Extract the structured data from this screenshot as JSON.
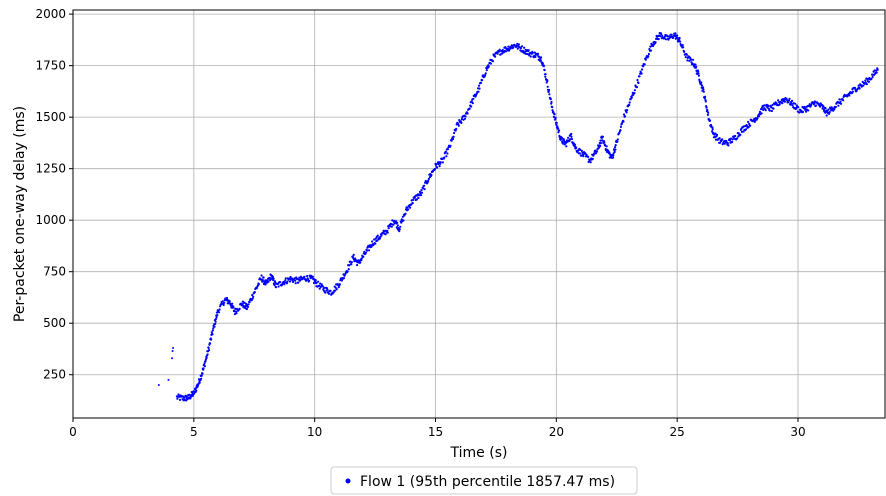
{
  "chart_data": {
    "type": "scatter",
    "xlabel": "Time (s)",
    "ylabel": "Per-packet one-way delay (ms)",
    "xlim": [
      0,
      33.6
    ],
    "ylim": [
      40,
      2020
    ],
    "x_ticks": [
      0,
      5,
      10,
      15,
      20,
      25,
      30
    ],
    "y_ticks": [
      250,
      500,
      750,
      1000,
      1250,
      1500,
      1750,
      2000
    ],
    "grid": true,
    "legend_position": "bottom-center",
    "colors": {
      "series": "#0000ff",
      "grid": "#b0b0b0",
      "axis": "#000000"
    },
    "series": [
      {
        "name": "Flow 1 (95th percentile 1857.47 ms)",
        "color": "#0000ff",
        "outliers": [
          [
            3.55,
            200
          ],
          [
            3.95,
            225
          ],
          [
            4.1,
            330
          ],
          [
            4.12,
            365
          ],
          [
            4.14,
            380
          ]
        ],
        "points": [
          [
            4.3,
            140
          ],
          [
            4.6,
            135
          ],
          [
            4.8,
            140
          ],
          [
            5.0,
            160
          ],
          [
            5.2,
            210
          ],
          [
            5.4,
            280
          ],
          [
            5.6,
            370
          ],
          [
            5.8,
            470
          ],
          [
            6.0,
            560
          ],
          [
            6.3,
            615
          ],
          [
            6.5,
            600
          ],
          [
            6.7,
            555
          ],
          [
            7.0,
            595
          ],
          [
            7.2,
            575
          ],
          [
            7.5,
            650
          ],
          [
            7.8,
            720
          ],
          [
            8.0,
            690
          ],
          [
            8.2,
            730
          ],
          [
            8.4,
            680
          ],
          [
            8.7,
            700
          ],
          [
            9.0,
            715
          ],
          [
            9.3,
            705
          ],
          [
            9.6,
            720
          ],
          [
            9.9,
            715
          ],
          [
            10.1,
            690
          ],
          [
            10.4,
            665
          ],
          [
            10.7,
            650
          ],
          [
            11.0,
            690
          ],
          [
            11.3,
            750
          ],
          [
            11.6,
            820
          ],
          [
            11.8,
            790
          ],
          [
            12.1,
            840
          ],
          [
            12.4,
            890
          ],
          [
            12.7,
            920
          ],
          [
            13.0,
            950
          ],
          [
            13.3,
            1000
          ],
          [
            13.5,
            960
          ],
          [
            13.8,
            1050
          ],
          [
            14.1,
            1100
          ],
          [
            14.4,
            1130
          ],
          [
            14.7,
            1200
          ],
          [
            15.0,
            1260
          ],
          [
            15.3,
            1290
          ],
          [
            15.6,
            1360
          ],
          [
            15.9,
            1460
          ],
          [
            16.2,
            1500
          ],
          [
            16.5,
            1570
          ],
          [
            16.8,
            1640
          ],
          [
            17.1,
            1730
          ],
          [
            17.4,
            1790
          ],
          [
            17.7,
            1820
          ],
          [
            18.0,
            1835
          ],
          [
            18.3,
            1850
          ],
          [
            18.6,
            1830
          ],
          [
            18.9,
            1810
          ],
          [
            19.2,
            1800
          ],
          [
            19.4,
            1780
          ],
          [
            19.6,
            1680
          ],
          [
            19.8,
            1560
          ],
          [
            20.0,
            1470
          ],
          [
            20.2,
            1390
          ],
          [
            20.4,
            1370
          ],
          [
            20.6,
            1410
          ],
          [
            20.8,
            1350
          ],
          [
            21.1,
            1320
          ],
          [
            21.4,
            1290
          ],
          [
            21.7,
            1340
          ],
          [
            21.9,
            1400
          ],
          [
            22.1,
            1340
          ],
          [
            22.3,
            1300
          ],
          [
            22.5,
            1380
          ],
          [
            22.8,
            1500
          ],
          [
            23.1,
            1590
          ],
          [
            23.4,
            1680
          ],
          [
            23.7,
            1780
          ],
          [
            24.0,
            1860
          ],
          [
            24.3,
            1900
          ],
          [
            24.6,
            1880
          ],
          [
            24.9,
            1900
          ],
          [
            25.1,
            1870
          ],
          [
            25.4,
            1790
          ],
          [
            25.7,
            1760
          ],
          [
            25.9,
            1700
          ],
          [
            26.1,
            1620
          ],
          [
            26.3,
            1500
          ],
          [
            26.5,
            1420
          ],
          [
            26.8,
            1380
          ],
          [
            27.1,
            1375
          ],
          [
            27.4,
            1400
          ],
          [
            27.7,
            1440
          ],
          [
            28.0,
            1470
          ],
          [
            28.3,
            1500
          ],
          [
            28.6,
            1550
          ],
          [
            28.9,
            1540
          ],
          [
            29.2,
            1570
          ],
          [
            29.5,
            1590
          ],
          [
            29.8,
            1560
          ],
          [
            30.1,
            1530
          ],
          [
            30.4,
            1545
          ],
          [
            30.7,
            1570
          ],
          [
            31.0,
            1550
          ],
          [
            31.2,
            1520
          ],
          [
            31.5,
            1550
          ],
          [
            31.8,
            1580
          ],
          [
            32.1,
            1610
          ],
          [
            32.4,
            1640
          ],
          [
            32.7,
            1660
          ],
          [
            33.0,
            1690
          ],
          [
            33.3,
            1730
          ]
        ]
      }
    ]
  }
}
